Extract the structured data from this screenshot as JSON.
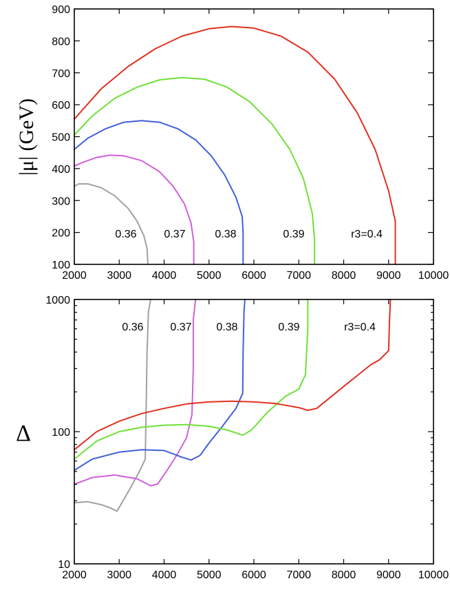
{
  "chart_data": [
    {
      "type": "line",
      "ylabel": "|μ| (GeV)",
      "xlim": [
        2000,
        10000
      ],
      "ylim": [
        100,
        900
      ],
      "yscale": "linear",
      "xticks": [
        2000,
        3000,
        4000,
        5000,
        6000,
        7000,
        8000,
        9000,
        10000
      ],
      "yticks": [
        100,
        200,
        300,
        400,
        500,
        600,
        700,
        800,
        900
      ],
      "series": [
        {
          "name": "0.36",
          "color": "#a0a0a0",
          "x": [
            2000,
            2100,
            2300,
            2600,
            2900,
            3200,
            3400,
            3550,
            3620,
            3640
          ],
          "y": [
            345,
            352,
            352,
            340,
            315,
            275,
            235,
            190,
            150,
            100
          ]
        },
        {
          "name": "0.37",
          "color": "#d060d8",
          "x": [
            2000,
            2200,
            2500,
            2800,
            3100,
            3500,
            3900,
            4200,
            4450,
            4600,
            4660,
            4660
          ],
          "y": [
            408,
            420,
            435,
            442,
            440,
            425,
            390,
            345,
            290,
            230,
            170,
            100
          ]
        },
        {
          "name": "0.38",
          "color": "#4060d8",
          "x": [
            2000,
            2300,
            2700,
            3100,
            3500,
            3900,
            4300,
            4700,
            5050,
            5350,
            5600,
            5740,
            5760,
            5760
          ],
          "y": [
            460,
            495,
            525,
            545,
            550,
            545,
            525,
            490,
            440,
            380,
            310,
            250,
            200,
            100
          ]
        },
        {
          "name": "0.39",
          "color": "#70e038",
          "x": [
            2000,
            2400,
            2900,
            3400,
            3900,
            4400,
            4900,
            5400,
            5900,
            6400,
            6800,
            7100,
            7300,
            7350,
            7350
          ],
          "y": [
            505,
            565,
            620,
            655,
            678,
            685,
            680,
            655,
            610,
            540,
            460,
            370,
            260,
            180,
            100
          ]
        },
        {
          "name": "r3=0.4",
          "color": "#e03020",
          "x": [
            2000,
            2600,
            3200,
            3800,
            4400,
            5000,
            5500,
            6000,
            6600,
            7200,
            7800,
            8300,
            8700,
            9000,
            9150,
            9150
          ],
          "y": [
            555,
            650,
            720,
            775,
            815,
            838,
            845,
            840,
            815,
            765,
            680,
            575,
            460,
            330,
            235,
            100
          ]
        }
      ],
      "annotations": [
        "0.36",
        "0.37",
        "0.38",
        "0.39",
        "r3=0.4"
      ]
    },
    {
      "type": "line",
      "ylabel": "Δ",
      "xlim": [
        2000,
        10000
      ],
      "ylim": [
        10,
        1000
      ],
      "yscale": "log",
      "xticks": [
        2000,
        3000,
        4000,
        5000,
        6000,
        7000,
        8000,
        9000,
        10000
      ],
      "yticks": [
        10,
        100,
        1000
      ],
      "series": [
        {
          "name": "0.36",
          "color": "#a0a0a0",
          "x": [
            2000,
            2300,
            2600,
            2800,
            2950,
            3200,
            3450,
            3580,
            3600,
            3620,
            3650,
            3700
          ],
          "y": [
            29,
            29.5,
            28,
            26.5,
            25,
            35,
            50,
            62,
            150,
            400,
            800,
            1000
          ]
        },
        {
          "name": "0.37",
          "color": "#d060d8",
          "x": [
            2000,
            2400,
            2900,
            3400,
            3700,
            3850,
            4050,
            4300,
            4500,
            4620,
            4650,
            4650,
            4700
          ],
          "y": [
            40,
            45,
            47,
            44,
            39,
            40,
            50,
            68,
            90,
            135,
            300,
            700,
            1000
          ]
        },
        {
          "name": "0.38",
          "color": "#4060d8",
          "x": [
            2000,
            2400,
            3000,
            3500,
            4000,
            4400,
            4600,
            4800,
            5000,
            5300,
            5600,
            5750,
            5760,
            5780,
            5800
          ],
          "y": [
            51,
            62,
            70,
            73,
            72,
            64,
            61,
            66,
            82,
            110,
            150,
            195,
            400,
            800,
            1000
          ]
        },
        {
          "name": "0.39",
          "color": "#70e038",
          "x": [
            2000,
            2500,
            3000,
            3500,
            4000,
            4500,
            5000,
            5400,
            5750,
            5950,
            6300,
            6700,
            7000,
            7150,
            7200,
            7200
          ],
          "y": [
            62,
            85,
            100,
            108,
            112,
            113,
            110,
            103,
            94,
            103,
            140,
            185,
            210,
            270,
            600,
            1000
          ]
        },
        {
          "name": "r3=0.4",
          "color": "#e03020",
          "x": [
            2000,
            2500,
            3000,
            3500,
            4000,
            4500,
            5000,
            5500,
            6000,
            6500,
            7000,
            7200,
            7400,
            8000,
            8600,
            8800,
            9000,
            9020,
            9040
          ],
          "y": [
            73,
            100,
            120,
            137,
            150,
            162,
            168,
            170,
            168,
            163,
            152,
            145,
            150,
            220,
            320,
            350,
            410,
            700,
            1000
          ]
        }
      ],
      "annotations": [
        "0.36",
        "0.37",
        "0.38",
        "0.39",
        "r3=0.4"
      ]
    }
  ]
}
